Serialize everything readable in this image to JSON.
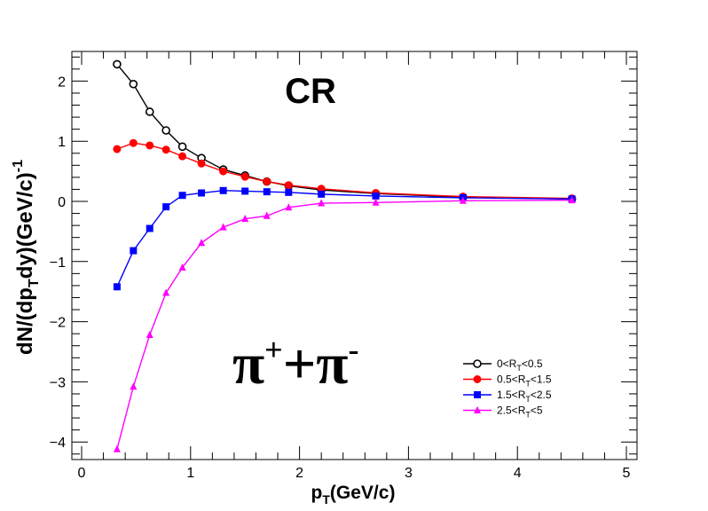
{
  "chart_data": {
    "type": "line",
    "title": "",
    "xlabel": {
      "base": "p",
      "sub": "T",
      "rest": "(GeV/c)"
    },
    "ylabel": {
      "p1": "dN/(dp",
      "sub": "T",
      "p2": "dy)(GeV/c)",
      "sup": "-1"
    },
    "xlim": [
      0,
      5
    ],
    "ylim": [
      -4.25,
      2.5
    ],
    "x_ticks": [
      0,
      1,
      2,
      3,
      4,
      5
    ],
    "y_ticks": [
      -4,
      -3,
      -2,
      -1,
      0,
      1,
      2
    ],
    "grid": false,
    "legend_position": "bottom-right",
    "annotations": {
      "region": "CR",
      "particle": {
        "a": "π",
        "a_sup": "+",
        "plus": "+",
        "b": "π",
        "b_sup": "-"
      }
    },
    "series": [
      {
        "name": "0<RT<0.5",
        "legend": {
          "pre": "0<R",
          "sub": "T",
          "post": "<0.5"
        },
        "color": "#000000",
        "marker": "open-circle",
        "x": [
          0.325,
          0.475,
          0.625,
          0.775,
          0.925,
          1.1,
          1.3,
          1.5,
          1.7,
          1.9,
          2.2,
          2.7,
          3.5,
          4.5
        ],
        "y": [
          2.28,
          1.95,
          1.49,
          1.18,
          0.91,
          0.72,
          0.53,
          0.43,
          0.33,
          0.26,
          0.19,
          0.13,
          0.07,
          0.04
        ]
      },
      {
        "name": "0.5<RT<1.5",
        "legend": {
          "pre": "0.5<R",
          "sub": "T",
          "post": "<1.5"
        },
        "color": "#ff0000",
        "marker": "filled-circle",
        "x": [
          0.325,
          0.475,
          0.625,
          0.775,
          0.925,
          1.1,
          1.3,
          1.5,
          1.7,
          1.9,
          2.2,
          2.7,
          3.5,
          4.5
        ],
        "y": [
          0.87,
          0.97,
          0.93,
          0.86,
          0.75,
          0.63,
          0.5,
          0.41,
          0.33,
          0.27,
          0.21,
          0.14,
          0.08,
          0.05
        ]
      },
      {
        "name": "1.5<RT<2.5",
        "legend": {
          "pre": "1.5<R",
          "sub": "T",
          "post": "<2.5"
        },
        "color": "#0000ff",
        "marker": "filled-square",
        "x": [
          0.325,
          0.475,
          0.625,
          0.775,
          0.925,
          1.1,
          1.3,
          1.5,
          1.7,
          1.9,
          2.2,
          2.7,
          3.5,
          4.5
        ],
        "y": [
          -1.42,
          -0.82,
          -0.45,
          -0.09,
          0.1,
          0.14,
          0.18,
          0.17,
          0.16,
          0.15,
          0.12,
          0.09,
          0.06,
          0.04
        ]
      },
      {
        "name": "2.5<RT<5",
        "legend": {
          "pre": "2.5<R",
          "sub": "T",
          "post": "<5"
        },
        "color": "#ff00ff",
        "marker": "filled-triangle",
        "x": [
          0.325,
          0.475,
          0.625,
          0.775,
          0.925,
          1.1,
          1.3,
          1.5,
          1.7,
          1.9,
          2.2,
          2.7,
          3.5,
          4.5
        ],
        "y": [
          -4.12,
          -3.08,
          -2.22,
          -1.52,
          -1.1,
          -0.69,
          -0.43,
          -0.29,
          -0.24,
          -0.1,
          -0.03,
          -0.02,
          0.01,
          0.02
        ]
      }
    ]
  }
}
